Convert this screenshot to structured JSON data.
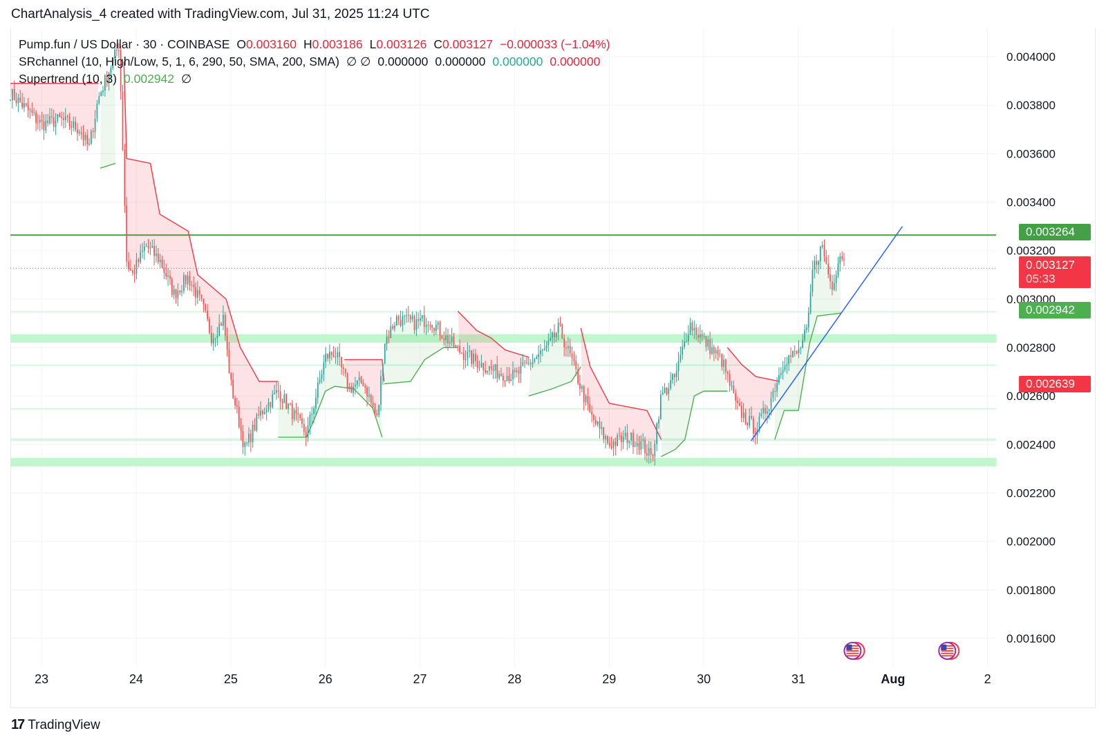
{
  "header": {
    "title": "ChartAnalysis_4 created with TradingView.com, Jul 31, 2025 11:24 UTC"
  },
  "legend": {
    "symbol": "Pump.fun / US Dollar · 30 · COINBASE",
    "o_label": "O",
    "o_val": "0.003160",
    "h_label": "H",
    "h_val": "0.003186",
    "l_label": "L",
    "l_val": "0.003126",
    "c_label": "C",
    "c_val": "0.003127",
    "change": "−0.000033 (−1.04%)",
    "sr_label": "SRchannel (10, High/Low, 5, 1, 6, 290, 50, SMA, 200, SMA)",
    "sr_icons": "∅  ∅",
    "sr_v1": "0.000000",
    "sr_v2": "0.000000",
    "sr_v3": "0.000000",
    "sr_v4": "0.000000",
    "st_label": "Supertrend (10, 3)",
    "st_val": "0.002942",
    "st_icon": "∅"
  },
  "price_tags": {
    "resistance": "0.003264",
    "last": "0.003127",
    "countdown": "05:33",
    "supertrend": "0.002942",
    "level": "0.002639"
  },
  "footer": {
    "logo_mark": "17",
    "brand": "TradingView"
  },
  "colors": {
    "up": "#26a69a",
    "down": "#ef5350",
    "supertrend_up": "#4caf50",
    "supertrend_down": "#f23645",
    "zone": "#b9f6ca",
    "resistance": "#43a047",
    "trendline": "#2962ff",
    "last_price": "#f23645"
  },
  "chart_data": {
    "type": "candlestick",
    "title": "Pump.fun / US Dollar · 30 · COINBASE",
    "y_axis": {
      "ylim": [
        0.00148,
        0.00412
      ],
      "ticks": [
        "0.004000",
        "0.003800",
        "0.003600",
        "0.003400",
        "0.003200",
        "0.003000",
        "0.002800",
        "0.002600",
        "0.002400",
        "0.002200",
        "0.002000",
        "0.001800",
        "0.001600"
      ],
      "tick_values": [
        0.004,
        0.0038,
        0.0036,
        0.0034,
        0.0032,
        0.003,
        0.0028,
        0.0026,
        0.0024,
        0.0022,
        0.002,
        0.0018,
        0.0016
      ]
    },
    "x_axis": {
      "xlim": [
        22.67,
        33.09
      ],
      "ticks": [
        "23",
        "24",
        "25",
        "26",
        "27",
        "28",
        "29",
        "30",
        "31",
        "Aug",
        "2"
      ],
      "tick_values": [
        23,
        24,
        25,
        26,
        27,
        28,
        29,
        30,
        31,
        32,
        33
      ]
    },
    "close_path": [
      [
        22.67,
        0.00385
      ],
      [
        23.0,
        0.00372
      ],
      [
        23.2,
        0.00374
      ],
      [
        23.4,
        0.0037
      ],
      [
        23.5,
        0.00362
      ],
      [
        23.6,
        0.00383
      ],
      [
        23.72,
        0.00395
      ],
      [
        23.82,
        0.00405
      ],
      [
        23.86,
        0.0036
      ],
      [
        23.9,
        0.00315
      ],
      [
        23.96,
        0.0031
      ],
      [
        24.1,
        0.00322
      ],
      [
        24.25,
        0.00316
      ],
      [
        24.4,
        0.00302
      ],
      [
        24.55,
        0.00309
      ],
      [
        24.7,
        0.00297
      ],
      [
        24.8,
        0.00284
      ],
      [
        24.92,
        0.00292
      ],
      [
        25.0,
        0.00265
      ],
      [
        25.15,
        0.00238
      ],
      [
        25.3,
        0.00252
      ],
      [
        25.5,
        0.00262
      ],
      [
        25.62,
        0.00255
      ],
      [
        25.8,
        0.00244
      ],
      [
        26.0,
        0.00276
      ],
      [
        26.1,
        0.00278
      ],
      [
        26.25,
        0.00263
      ],
      [
        26.4,
        0.00266
      ],
      [
        26.55,
        0.0025
      ],
      [
        26.62,
        0.00282
      ],
      [
        26.75,
        0.00292
      ],
      [
        26.95,
        0.0029
      ],
      [
        27.1,
        0.00292
      ],
      [
        27.25,
        0.00285
      ],
      [
        27.4,
        0.00279
      ],
      [
        27.6,
        0.00274
      ],
      [
        27.8,
        0.0027
      ],
      [
        28.0,
        0.00268
      ],
      [
        28.2,
        0.00275
      ],
      [
        28.35,
        0.0028
      ],
      [
        28.47,
        0.00288
      ],
      [
        28.6,
        0.00275
      ],
      [
        28.8,
        0.00252
      ],
      [
        29.0,
        0.0024
      ],
      [
        29.2,
        0.00243
      ],
      [
        29.35,
        0.0024
      ],
      [
        29.45,
        0.00234
      ],
      [
        29.55,
        0.0026
      ],
      [
        29.7,
        0.00268
      ],
      [
        29.85,
        0.0029
      ],
      [
        30.0,
        0.00283
      ],
      [
        30.2,
        0.00274
      ],
      [
        30.35,
        0.00255
      ],
      [
        30.55,
        0.00246
      ],
      [
        30.7,
        0.00258
      ],
      [
        30.85,
        0.00275
      ],
      [
        31.0,
        0.00278
      ],
      [
        31.1,
        0.00288
      ],
      [
        31.15,
        0.00312
      ],
      [
        31.25,
        0.00322
      ],
      [
        31.35,
        0.00305
      ],
      [
        31.45,
        0.0032
      ],
      [
        31.5,
        0.003127
      ]
    ],
    "supertrend": [
      {
        "side": "down",
        "points": [
          [
            22.67,
            0.00389
          ],
          [
            23.6,
            0.00389
          ]
        ]
      },
      {
        "side": "up",
        "points": [
          [
            23.62,
            0.00354
          ],
          [
            23.78,
            0.00356
          ]
        ]
      },
      {
        "side": "down",
        "points": [
          [
            23.87,
            0.00398
          ],
          [
            23.9,
            0.00358
          ],
          [
            24.15,
            0.00356
          ],
          [
            24.25,
            0.00335
          ],
          [
            24.55,
            0.00328
          ],
          [
            24.65,
            0.0031
          ],
          [
            24.95,
            0.003
          ],
          [
            25.1,
            0.0028
          ],
          [
            25.3,
            0.00266
          ],
          [
            25.5,
            0.00266
          ]
        ]
      },
      {
        "side": "up",
        "points": [
          [
            25.5,
            0.00243
          ],
          [
            25.8,
            0.00243
          ],
          [
            25.9,
            0.00252
          ],
          [
            26.0,
            0.00262
          ],
          [
            26.1,
            0.00264
          ],
          [
            26.3,
            0.00263
          ],
          [
            26.5,
            0.00255
          ],
          [
            26.6,
            0.00243
          ]
        ]
      },
      {
        "side": "down",
        "points": [
          [
            26.2,
            0.00275
          ],
          [
            26.6,
            0.00275
          ],
          [
            26.62,
            0.00266
          ]
        ]
      },
      {
        "side": "up",
        "points": [
          [
            26.62,
            0.00265
          ],
          [
            26.9,
            0.00266
          ],
          [
            27.05,
            0.00275
          ],
          [
            27.25,
            0.0028
          ],
          [
            27.4,
            0.0028
          ]
        ]
      },
      {
        "side": "down",
        "points": [
          [
            27.4,
            0.00295
          ],
          [
            27.6,
            0.00287
          ],
          [
            27.75,
            0.00284
          ],
          [
            27.9,
            0.00279
          ],
          [
            28.15,
            0.00276
          ]
        ]
      },
      {
        "side": "up",
        "points": [
          [
            28.15,
            0.0026
          ],
          [
            28.4,
            0.00263
          ],
          [
            28.6,
            0.00266
          ],
          [
            28.7,
            0.00272
          ]
        ]
      },
      {
        "side": "down",
        "points": [
          [
            28.7,
            0.00288
          ],
          [
            28.8,
            0.00272
          ],
          [
            29.0,
            0.00257
          ],
          [
            29.4,
            0.00254
          ],
          [
            29.55,
            0.00242
          ]
        ]
      },
      {
        "side": "up",
        "points": [
          [
            29.55,
            0.00235
          ],
          [
            29.7,
            0.00238
          ],
          [
            29.8,
            0.00242
          ],
          [
            29.9,
            0.0026
          ],
          [
            30.0,
            0.00262
          ],
          [
            30.25,
            0.00262
          ]
        ]
      },
      {
        "side": "down",
        "points": [
          [
            30.25,
            0.0028
          ],
          [
            30.4,
            0.00273
          ],
          [
            30.55,
            0.00268
          ],
          [
            30.8,
            0.00266
          ]
        ]
      },
      {
        "side": "up",
        "points": [
          [
            30.75,
            0.00242
          ],
          [
            30.85,
            0.00254
          ],
          [
            31.0,
            0.00254
          ],
          [
            31.12,
            0.00282
          ],
          [
            31.2,
            0.00293
          ],
          [
            31.45,
            0.002942
          ]
        ]
      }
    ],
    "sr_zones": [
      {
        "from": 0.00282,
        "to": 0.002855,
        "strong": true
      },
      {
        "from": 0.002725,
        "to": 0.00273,
        "strong": false
      },
      {
        "from": 0.002545,
        "to": 0.00255,
        "strong": false
      },
      {
        "from": 0.002415,
        "to": 0.002425,
        "strong": false
      },
      {
        "from": 0.00231,
        "to": 0.002345,
        "strong": true
      },
      {
        "from": 0.002945,
        "to": 0.00295,
        "strong": false
      }
    ],
    "resistance_level": 0.003264,
    "last_price": 0.003127,
    "trendline": [
      [
        30.5,
        0.002415
      ],
      [
        32.1,
        0.0033
      ]
    ],
    "events": [
      {
        "x": 31.5
      },
      {
        "x": 32.5
      }
    ]
  }
}
